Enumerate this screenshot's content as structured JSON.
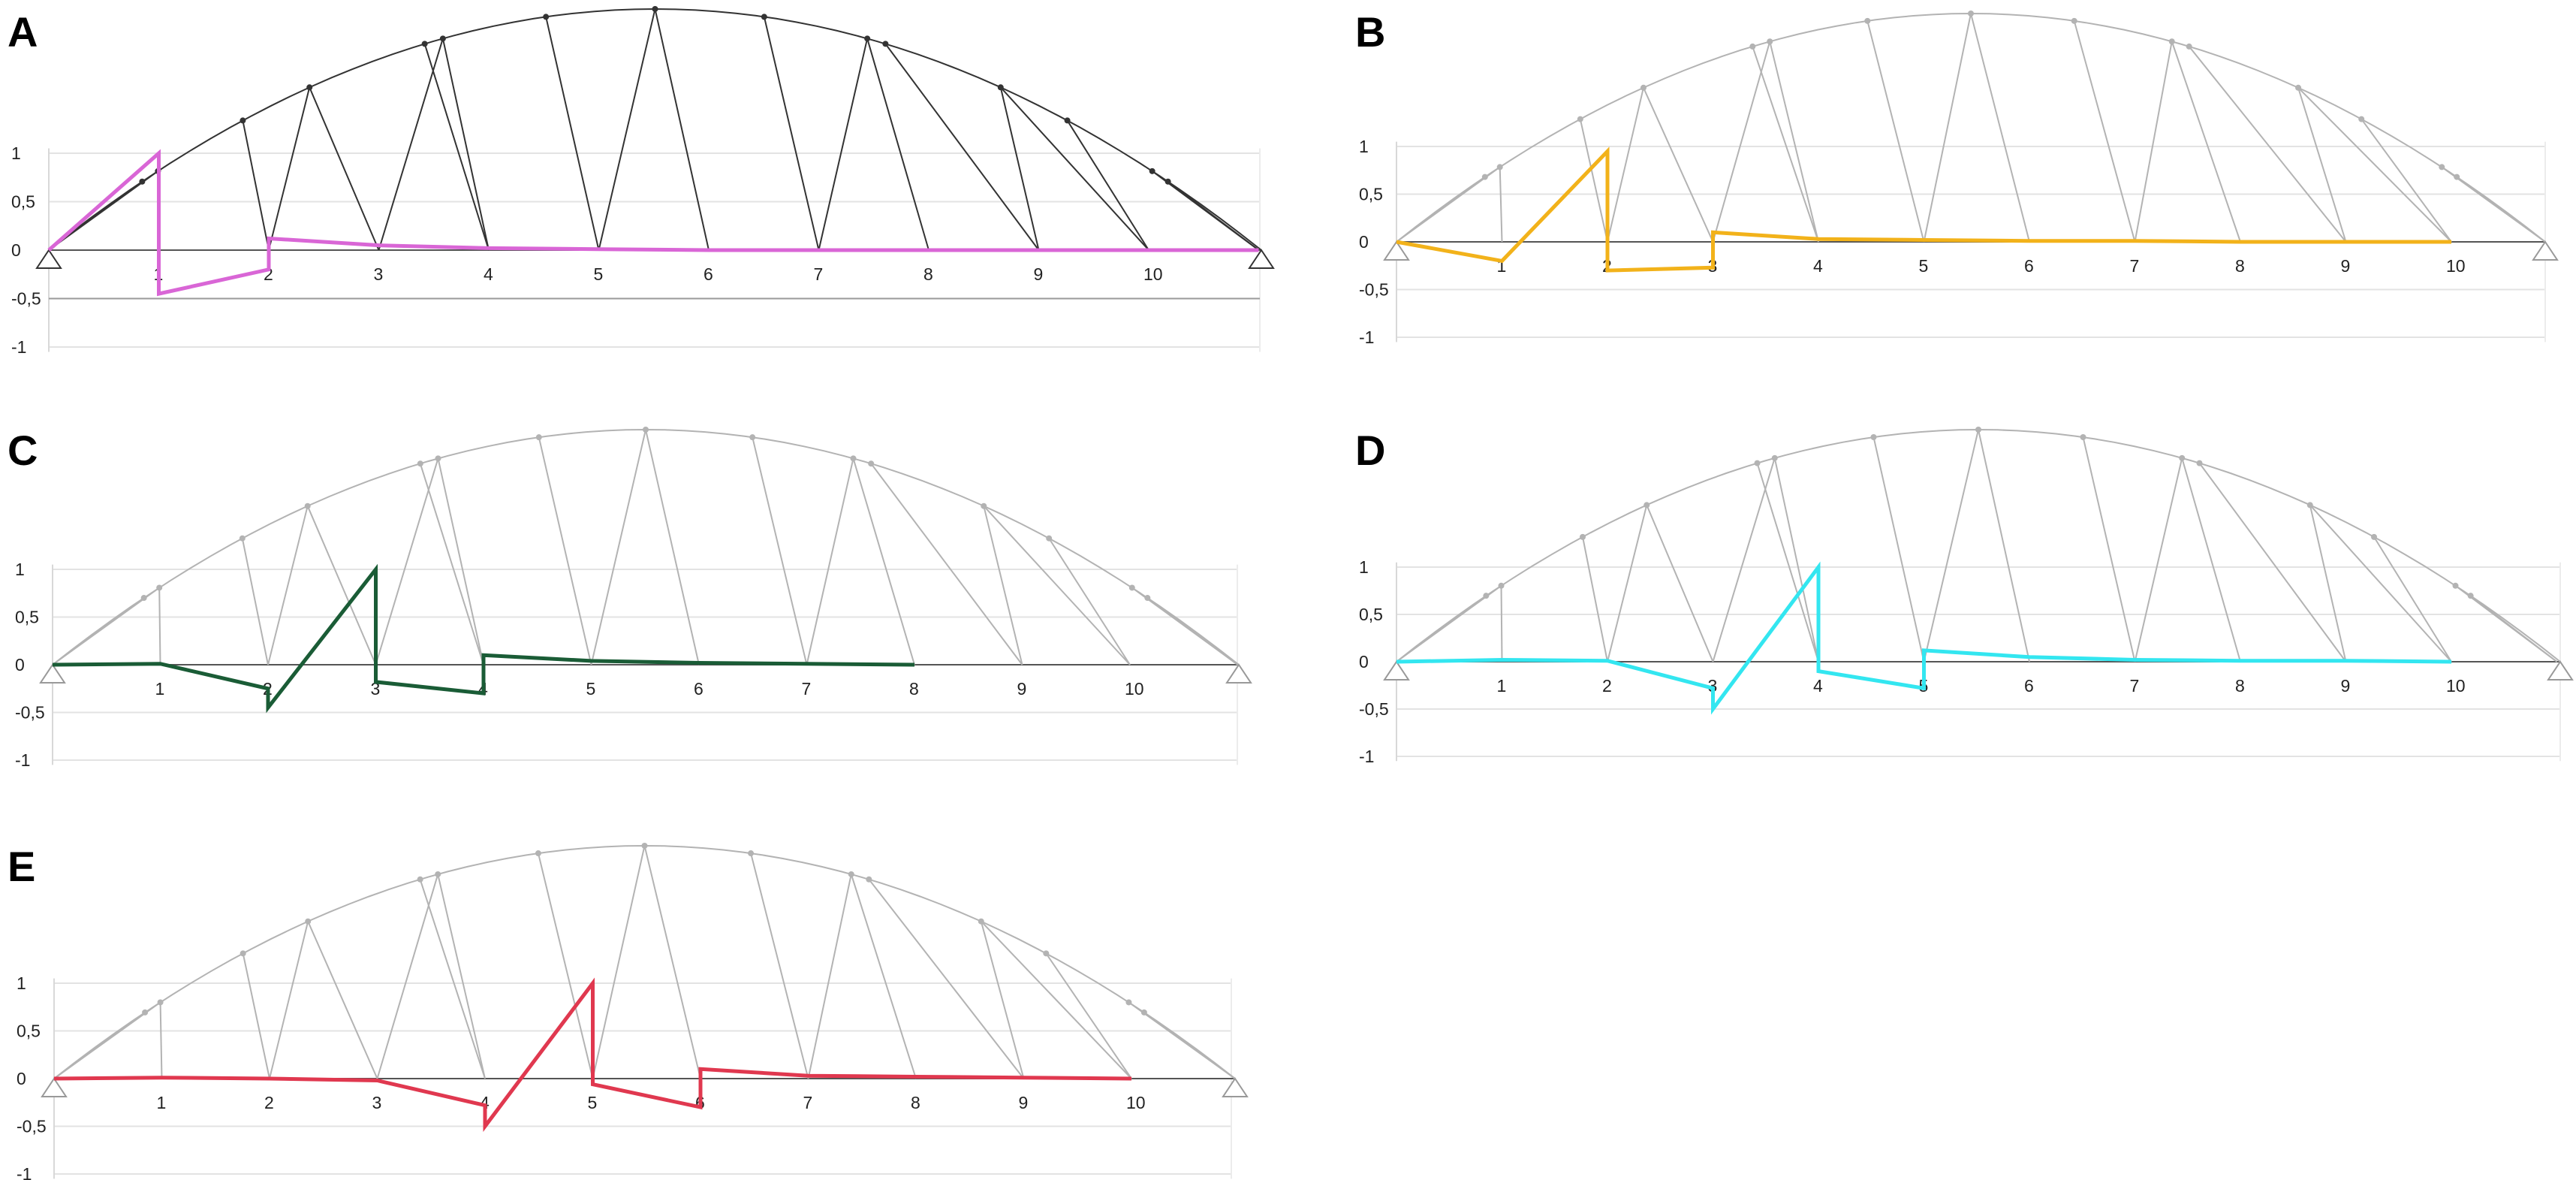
{
  "figure": {
    "panels": [
      {
        "letter": "A",
        "color": "#d966d6",
        "peak_node": 1
      },
      {
        "letter": "B",
        "color": "#f2b21a",
        "peak_node": 2
      },
      {
        "letter": "C",
        "color": "#1a5c36",
        "peak_node": 3
      },
      {
        "letter": "D",
        "color": "#33e6f0",
        "peak_node": 4
      },
      {
        "letter": "E",
        "color": "#e0384f",
        "peak_node": 5
      }
    ],
    "node_labels": [
      "1",
      "2",
      "3",
      "4",
      "5",
      "6",
      "7",
      "8",
      "9",
      "10"
    ],
    "y_tick_labels": [
      "1",
      "0,5",
      "0",
      "-0,5",
      "-1"
    ],
    "truss_color_panel_a": "#333333",
    "truss_color_other": "#b3b3b3",
    "gridline_color": "#e3e3e3"
  },
  "chart_data": [
    {
      "type": "line",
      "panel": "A",
      "x": [
        0,
        1,
        1,
        2,
        2,
        3,
        4,
        5,
        6,
        7,
        8,
        9,
        10,
        11
      ],
      "y": [
        0,
        1,
        -0.45,
        -0.2,
        0.12,
        0.05,
        0.02,
        0.01,
        0,
        0,
        0,
        0,
        0,
        0
      ],
      "ylim": [
        -1,
        1
      ],
      "yticks": [
        "1",
        "0,5",
        "0",
        "-0,5",
        "-1"
      ],
      "xticks": [
        "1",
        "2",
        "3",
        "4",
        "5",
        "6",
        "7",
        "8",
        "9",
        "10"
      ]
    },
    {
      "type": "line",
      "panel": "B",
      "x": [
        0,
        1,
        2,
        2,
        3,
        3,
        4,
        5,
        6,
        7,
        8,
        9,
        10
      ],
      "y": [
        0,
        -0.2,
        0.95,
        -0.3,
        -0.27,
        0.1,
        0.03,
        0.02,
        0.01,
        0.01,
        0,
        0,
        0
      ],
      "ylim": [
        -1,
        1
      ],
      "yticks": [
        "1",
        "0,5",
        "0",
        "-0,5",
        "-1"
      ],
      "xticks": [
        "1",
        "2",
        "3",
        "4",
        "5",
        "6",
        "7",
        "8",
        "9",
        "10"
      ]
    },
    {
      "type": "line",
      "panel": "C",
      "x": [
        0,
        1,
        2,
        2,
        3,
        3,
        4,
        4,
        5,
        6,
        7,
        8
      ],
      "y": [
        0,
        0.01,
        -0.25,
        -0.45,
        1,
        -0.18,
        -0.3,
        0.1,
        0.04,
        0.02,
        0.01,
        0
      ],
      "ylim": [
        -1,
        1
      ],
      "yticks": [
        "1",
        "0,5",
        "0",
        "-0,5",
        "-1"
      ],
      "xticks": [
        "1",
        "2",
        "3",
        "4",
        "5",
        "6",
        "7",
        "8",
        "9",
        "10"
      ]
    },
    {
      "type": "line",
      "panel": "D",
      "x": [
        0,
        1,
        2,
        3,
        3,
        4,
        4,
        5,
        5,
        6,
        7,
        8,
        9,
        10
      ],
      "y": [
        0,
        0.02,
        0.01,
        -0.28,
        -0.5,
        1,
        -0.1,
        -0.28,
        0.12,
        0.05,
        0.02,
        0.01,
        0.01,
        0
      ],
      "ylim": [
        -1,
        1
      ],
      "yticks": [
        "1",
        "0,5",
        "0",
        "-0,5",
        "-1"
      ],
      "xticks": [
        "1",
        "2",
        "3",
        "4",
        "5",
        "6",
        "7",
        "8",
        "9",
        "10"
      ]
    },
    {
      "type": "line",
      "panel": "E",
      "x": [
        0,
        1,
        2,
        3,
        4,
        4,
        5,
        5,
        6,
        6,
        7,
        8,
        9,
        10
      ],
      "y": [
        0,
        0.01,
        0,
        -0.02,
        -0.28,
        -0.5,
        1,
        -0.06,
        -0.3,
        0.1,
        0.03,
        0.02,
        0.01,
        0
      ],
      "ylim": [
        -1,
        1
      ],
      "yticks": [
        "1",
        "0,5",
        "0",
        "-0,5",
        "-1"
      ],
      "xticks": [
        "1",
        "2",
        "3",
        "4",
        "5",
        "6",
        "7",
        "8",
        "9",
        "10"
      ]
    }
  ]
}
